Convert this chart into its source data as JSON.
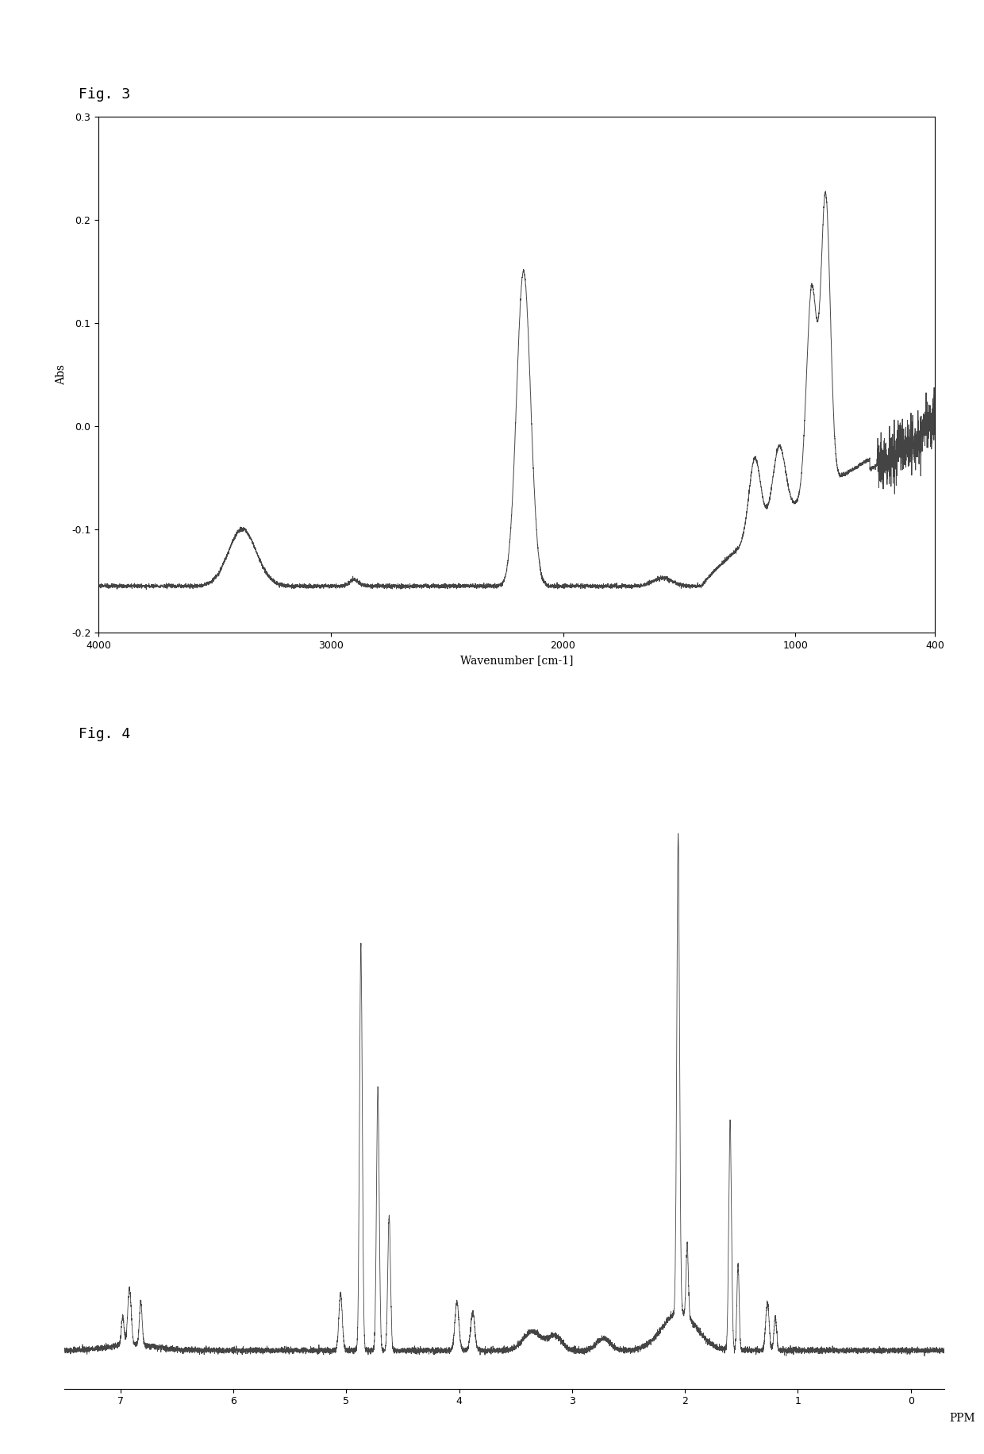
{
  "fig3_title": "Fig. 3",
  "fig4_title": "Fig. 4",
  "fig3_xlabel": "Wavenumber [cm-1]",
  "fig3_ylabel": "Abs",
  "fig3_xlim": [
    4000,
    400
  ],
  "fig3_ylim": [
    -0.2,
    0.3
  ],
  "fig3_yticks": [
    -0.2,
    -0.1,
    0,
    0.1,
    0.2,
    0.3
  ],
  "fig3_xticks": [
    4000,
    3000,
    2000,
    1000,
    400
  ],
  "fig4_xlabel": "PPM",
  "fig4_xlim": [
    7.5,
    -0.3
  ],
  "fig4_xticks": [
    7,
    6,
    5,
    4,
    3,
    2,
    1,
    0
  ],
  "line_color": "#444444",
  "bg_color": "#ffffff",
  "title_fontsize": 13,
  "axis_fontsize": 10,
  "tick_fontsize": 9
}
